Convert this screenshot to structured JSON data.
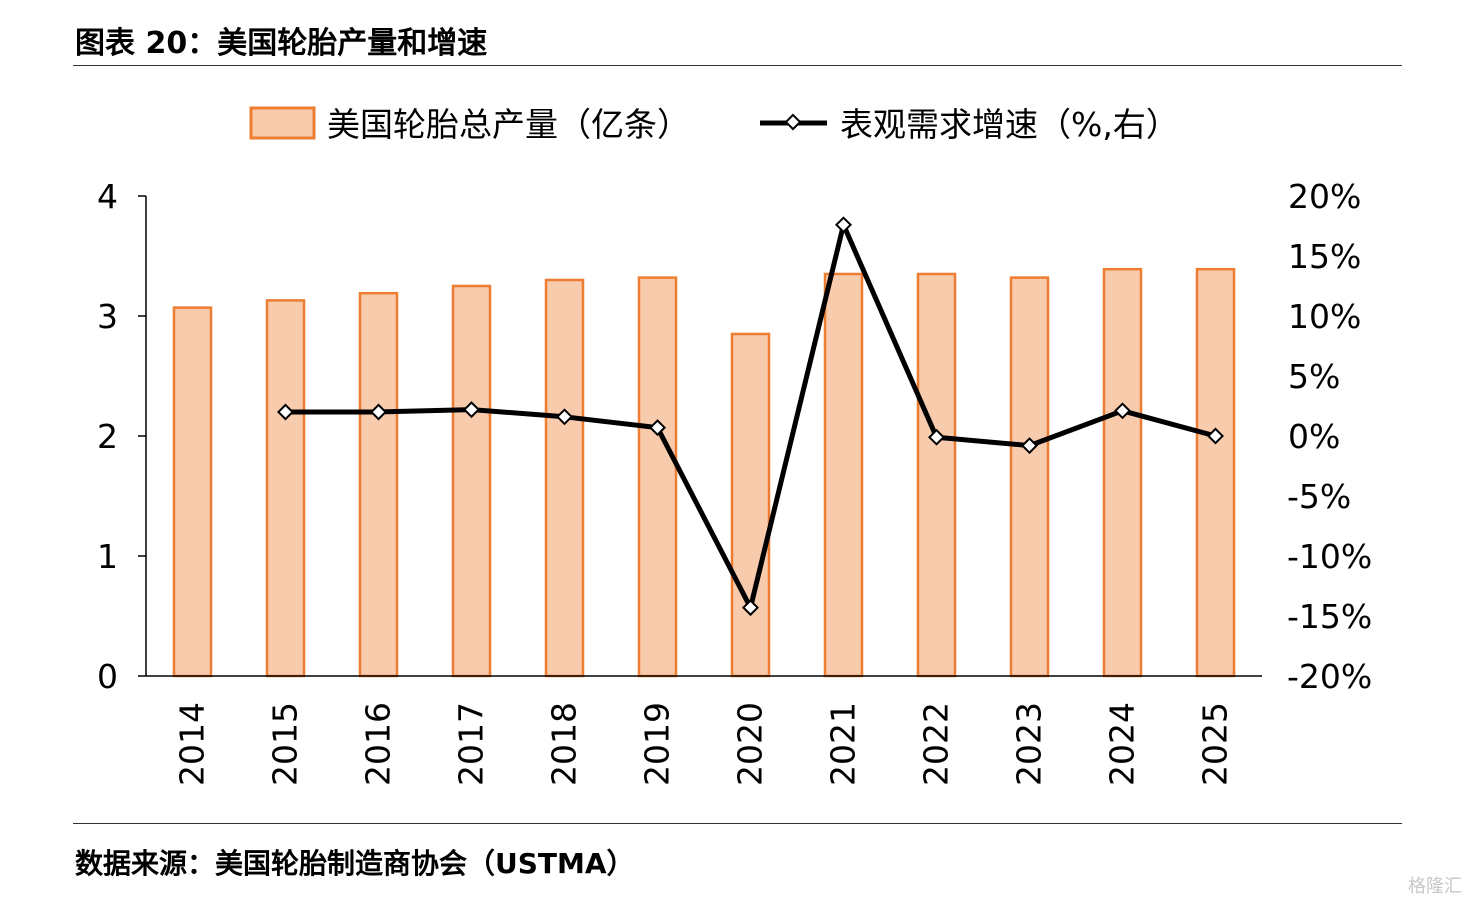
{
  "header": {
    "title": "图表 20：美国轮胎产量和增速"
  },
  "footer": {
    "source": "数据来源：美国轮胎制造商协会（USTMA）",
    "watermark": "格隆汇"
  },
  "colors": {
    "bar_fill": "#F8CBAD",
    "bar_stroke": "#ED7D31",
    "line": "#000000",
    "axis": "#000000"
  },
  "chart_data": {
    "type": "bar",
    "categories": [
      "2014",
      "2015",
      "2016",
      "2017",
      "2018",
      "2019",
      "2020",
      "2021",
      "2022",
      "2023",
      "2024",
      "2025"
    ],
    "series": [
      {
        "name": "美国轮胎总产量（亿条）",
        "type": "bar",
        "axis": "left",
        "values": [
          3.07,
          3.13,
          3.19,
          3.25,
          3.3,
          3.32,
          2.85,
          3.35,
          3.35,
          3.32,
          3.39,
          3.39
        ]
      },
      {
        "name": "表观需求增速（%,右）",
        "type": "line",
        "axis": "right",
        "values": [
          null,
          2.0,
          2.0,
          2.2,
          1.6,
          0.7,
          -14.3,
          17.6,
          -0.1,
          -0.8,
          2.1,
          0.0
        ]
      }
    ],
    "y_left": {
      "min": 0,
      "max": 4,
      "ticks": [
        0,
        1,
        2,
        3,
        4
      ],
      "tick_labels": [
        "0",
        "1",
        "2",
        "3",
        "4"
      ]
    },
    "y_right": {
      "min": -20,
      "max": 20,
      "ticks": [
        -20,
        -15,
        -10,
        -5,
        0,
        5,
        10,
        15,
        20
      ],
      "tick_labels": [
        "-20%",
        "-15%",
        "-10%",
        "-5%",
        "0%",
        "5%",
        "10%",
        "15%",
        "20%"
      ]
    },
    "legend_position": "top",
    "grid": false
  }
}
